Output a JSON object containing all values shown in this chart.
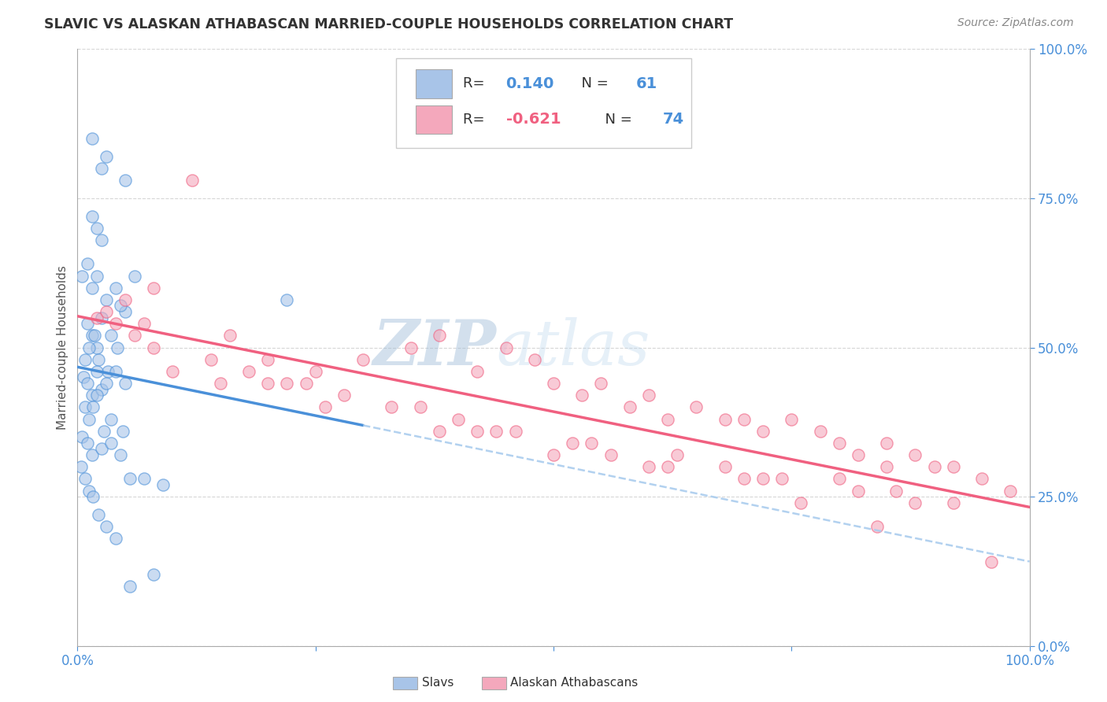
{
  "title": "SLAVIC VS ALASKAN ATHABASCAN MARRIED-COUPLE HOUSEHOLDS CORRELATION CHART",
  "source": "Source: ZipAtlas.com",
  "ylabel": "Married-couple Households",
  "slavs_R": 0.14,
  "slavs_N": 61,
  "athabascan_R": -0.621,
  "athabascan_N": 74,
  "slavs_color": "#a8c4e8",
  "athabascan_color": "#f4a8bc",
  "slavs_line_color": "#4a90d9",
  "athabascan_line_color": "#f06080",
  "dashed_extension_color": "#aaccee",
  "background_color": "#ffffff",
  "grid_color": "#cccccc",
  "title_color": "#333333",
  "axis_label_color": "#4a90d9",
  "watermark_zip_color": "#b0cce8",
  "watermark_atlas_color": "#c8ddf0",
  "xlim": [
    0.0,
    100.0
  ],
  "ylim": [
    0.0,
    100.0
  ],
  "x_ticks": [
    0,
    25,
    50,
    75,
    100
  ],
  "y_ticks": [
    0,
    25,
    50,
    75,
    100
  ],
  "y_tick_labels_right": [
    "0.0%",
    "25.0%",
    "50.0%",
    "75.0%",
    "100.0%"
  ],
  "slavs_x": [
    1.5,
    2.5,
    3.0,
    5.0,
    1.5,
    2.0,
    2.5,
    0.5,
    1.0,
    1.5,
    2.0,
    3.0,
    4.0,
    5.0,
    1.0,
    1.5,
    2.0,
    2.5,
    3.5,
    4.5,
    0.8,
    1.2,
    1.8,
    2.2,
    3.2,
    4.2,
    0.6,
    1.0,
    1.5,
    2.0,
    2.5,
    3.0,
    4.0,
    5.0,
    0.8,
    1.2,
    1.6,
    2.0,
    2.8,
    3.5,
    4.8,
    6.0,
    0.5,
    1.0,
    1.5,
    2.5,
    3.5,
    4.5,
    5.5,
    7.0,
    9.0,
    22.0,
    0.4,
    0.8,
    1.2,
    1.6,
    2.2,
    3.0,
    4.0,
    5.5,
    8.0
  ],
  "slavs_y": [
    85,
    80,
    82,
    78,
    72,
    70,
    68,
    62,
    64,
    60,
    62,
    58,
    60,
    56,
    54,
    52,
    50,
    55,
    52,
    57,
    48,
    50,
    52,
    48,
    46,
    50,
    45,
    44,
    42,
    46,
    43,
    44,
    46,
    44,
    40,
    38,
    40,
    42,
    36,
    38,
    36,
    62,
    35,
    34,
    32,
    33,
    34,
    32,
    28,
    28,
    27,
    58,
    30,
    28,
    26,
    25,
    22,
    20,
    18,
    10,
    12
  ],
  "athabascan_x": [
    2.0,
    5.0,
    8.0,
    12.0,
    16.0,
    20.0,
    25.0,
    30.0,
    35.0,
    38.0,
    42.0,
    45.0,
    48.0,
    50.0,
    53.0,
    55.0,
    58.0,
    60.0,
    62.0,
    65.0,
    68.0,
    70.0,
    72.0,
    75.0,
    78.0,
    80.0,
    82.0,
    85.0,
    88.0,
    90.0,
    92.0,
    95.0,
    98.0,
    3.0,
    7.0,
    14.0,
    18.0,
    22.0,
    28.0,
    33.0,
    40.0,
    44.0,
    52.0,
    56.0,
    62.0,
    68.0,
    74.0,
    80.0,
    86.0,
    92.0,
    6.0,
    10.0,
    24.0,
    36.0,
    46.0,
    54.0,
    63.0,
    72.0,
    82.0,
    88.0,
    8.0,
    15.0,
    26.0,
    38.0,
    50.0,
    60.0,
    70.0,
    76.0,
    84.0,
    96.0,
    4.0,
    20.0,
    42.0,
    85.0
  ],
  "athabascan_y": [
    55,
    58,
    60,
    78,
    52,
    48,
    46,
    48,
    50,
    52,
    46,
    50,
    48,
    44,
    42,
    44,
    40,
    42,
    38,
    40,
    38,
    38,
    36,
    38,
    36,
    34,
    32,
    34,
    32,
    30,
    30,
    28,
    26,
    56,
    54,
    48,
    46,
    44,
    42,
    40,
    38,
    36,
    34,
    32,
    30,
    30,
    28,
    28,
    26,
    24,
    52,
    46,
    44,
    40,
    36,
    34,
    32,
    28,
    26,
    24,
    50,
    44,
    40,
    36,
    32,
    30,
    28,
    24,
    20,
    14,
    54,
    44,
    36,
    30
  ]
}
